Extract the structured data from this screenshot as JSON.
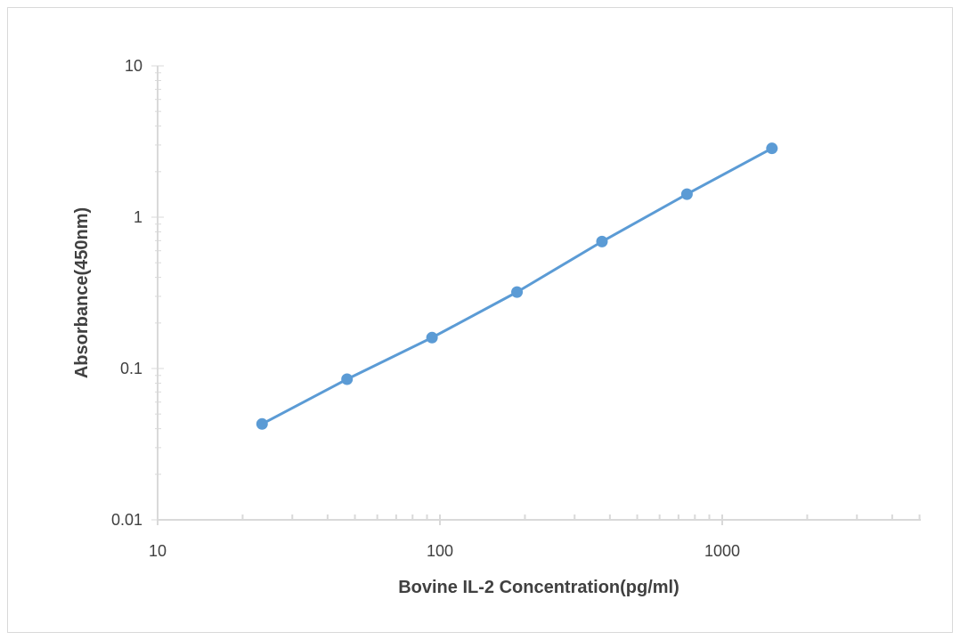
{
  "chart_data": {
    "type": "line",
    "title": "",
    "xlabel": "Bovine IL-2 Concentration(pg/ml)",
    "ylabel": "Absorbance(450nm)",
    "x_scale": "log",
    "y_scale": "log",
    "xlim": [
      10,
      5000
    ],
    "ylim": [
      0.01,
      10
    ],
    "x_ticks": [
      10,
      100,
      1000
    ],
    "x_tick_labels": [
      "10",
      "100",
      "1000"
    ],
    "y_ticks": [
      0.01,
      0.1,
      1,
      10
    ],
    "y_tick_labels": [
      "0.01",
      "0.1",
      "1",
      "10"
    ],
    "grid": false,
    "legend": "none",
    "series": [
      {
        "color": "#5b9bd5",
        "x": [
          23.44,
          46.88,
          93.75,
          187.5,
          375,
          750,
          1500
        ],
        "y": [
          0.043,
          0.085,
          0.16,
          0.32,
          0.69,
          1.42,
          2.85
        ]
      }
    ]
  }
}
